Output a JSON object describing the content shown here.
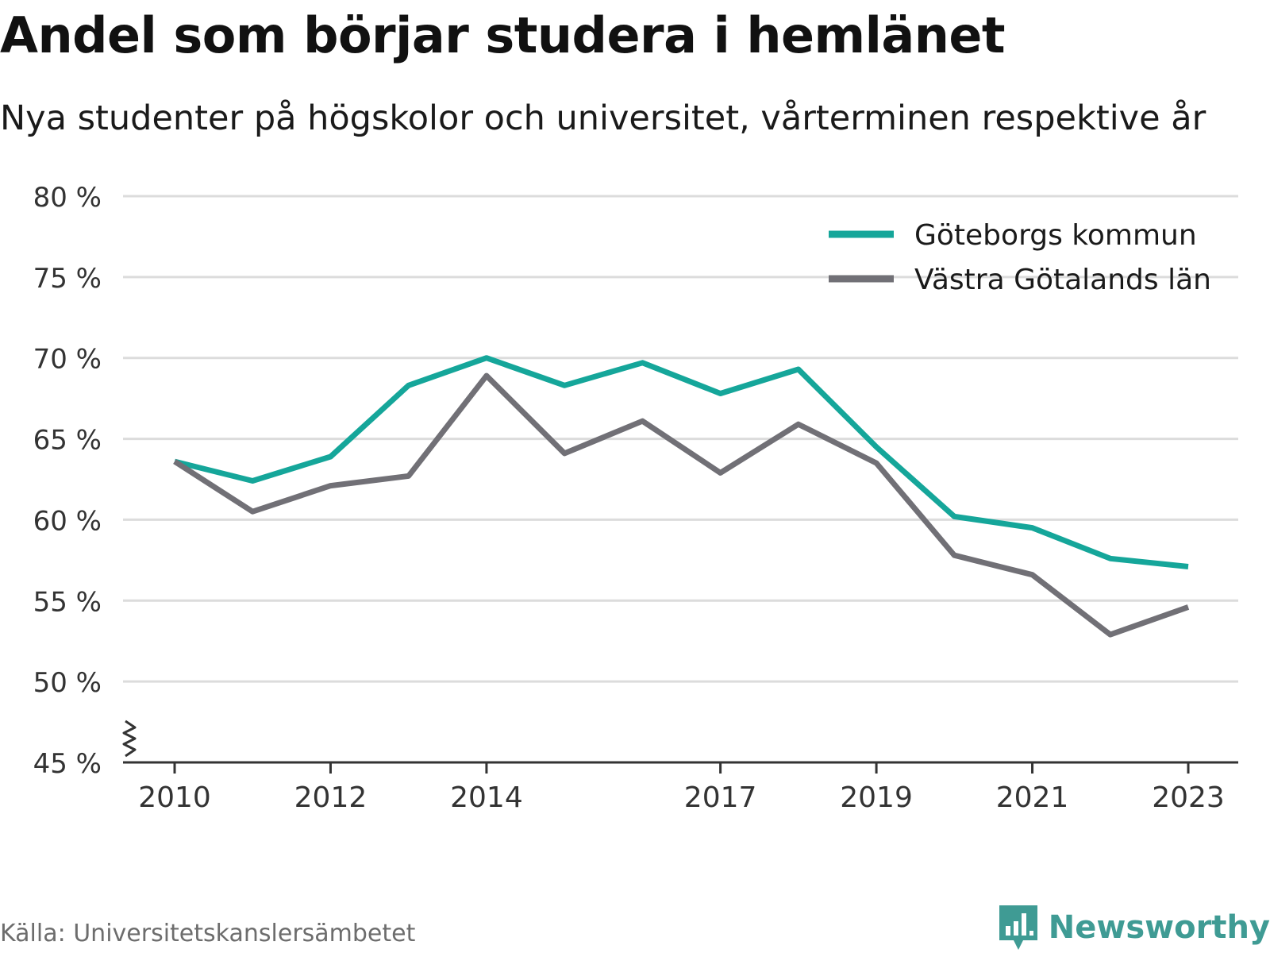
{
  "title": "Andel som börjar studera i hemlänet",
  "subtitle": "Nya studenter på högskolor och universitet, vårterminen respektive år",
  "source": "Källa: Universitetskanslersämbetet",
  "brand": {
    "name": "Newsworthy",
    "icon": "newsworthy-logo-icon",
    "color": "#3f9b94"
  },
  "chart_data": {
    "type": "line",
    "title": "Andel som börjar studera i hemlänet",
    "subtitle": "Nya studenter på högskolor och universitet, vårterminen respektive år",
    "x": [
      2010,
      2011,
      2012,
      2013,
      2014,
      2015,
      2016,
      2017,
      2018,
      2019,
      2020,
      2021,
      2022,
      2023
    ],
    "x_tick_labels": [
      "2010",
      "2012",
      "2014",
      "2017",
      "2019",
      "2021",
      "2023"
    ],
    "x_ticks": [
      2010,
      2012,
      2014,
      2017,
      2019,
      2021,
      2023
    ],
    "y_tick_labels": [
      "45 %",
      "50 %",
      "55 %",
      "60 %",
      "65 %",
      "70 %",
      "75 %",
      "80 %"
    ],
    "y_ticks": [
      45,
      50,
      55,
      60,
      65,
      70,
      75,
      80
    ],
    "ylim": [
      45,
      80
    ],
    "y_axis_break": true,
    "grid": true,
    "legend_position": "top-right",
    "series": [
      {
        "name": "Göteborgs kommun",
        "color": "#15a69a",
        "values": [
          63.6,
          62.4,
          63.9,
          68.3,
          70.0,
          68.3,
          69.7,
          67.8,
          69.3,
          64.5,
          60.2,
          59.5,
          57.6,
          57.1
        ]
      },
      {
        "name": "Västra Götalands län",
        "color": "#717076",
        "values": [
          63.6,
          60.5,
          62.1,
          62.7,
          68.9,
          64.1,
          66.1,
          62.9,
          65.9,
          63.5,
          57.8,
          56.6,
          52.9,
          54.6
        ]
      }
    ]
  }
}
